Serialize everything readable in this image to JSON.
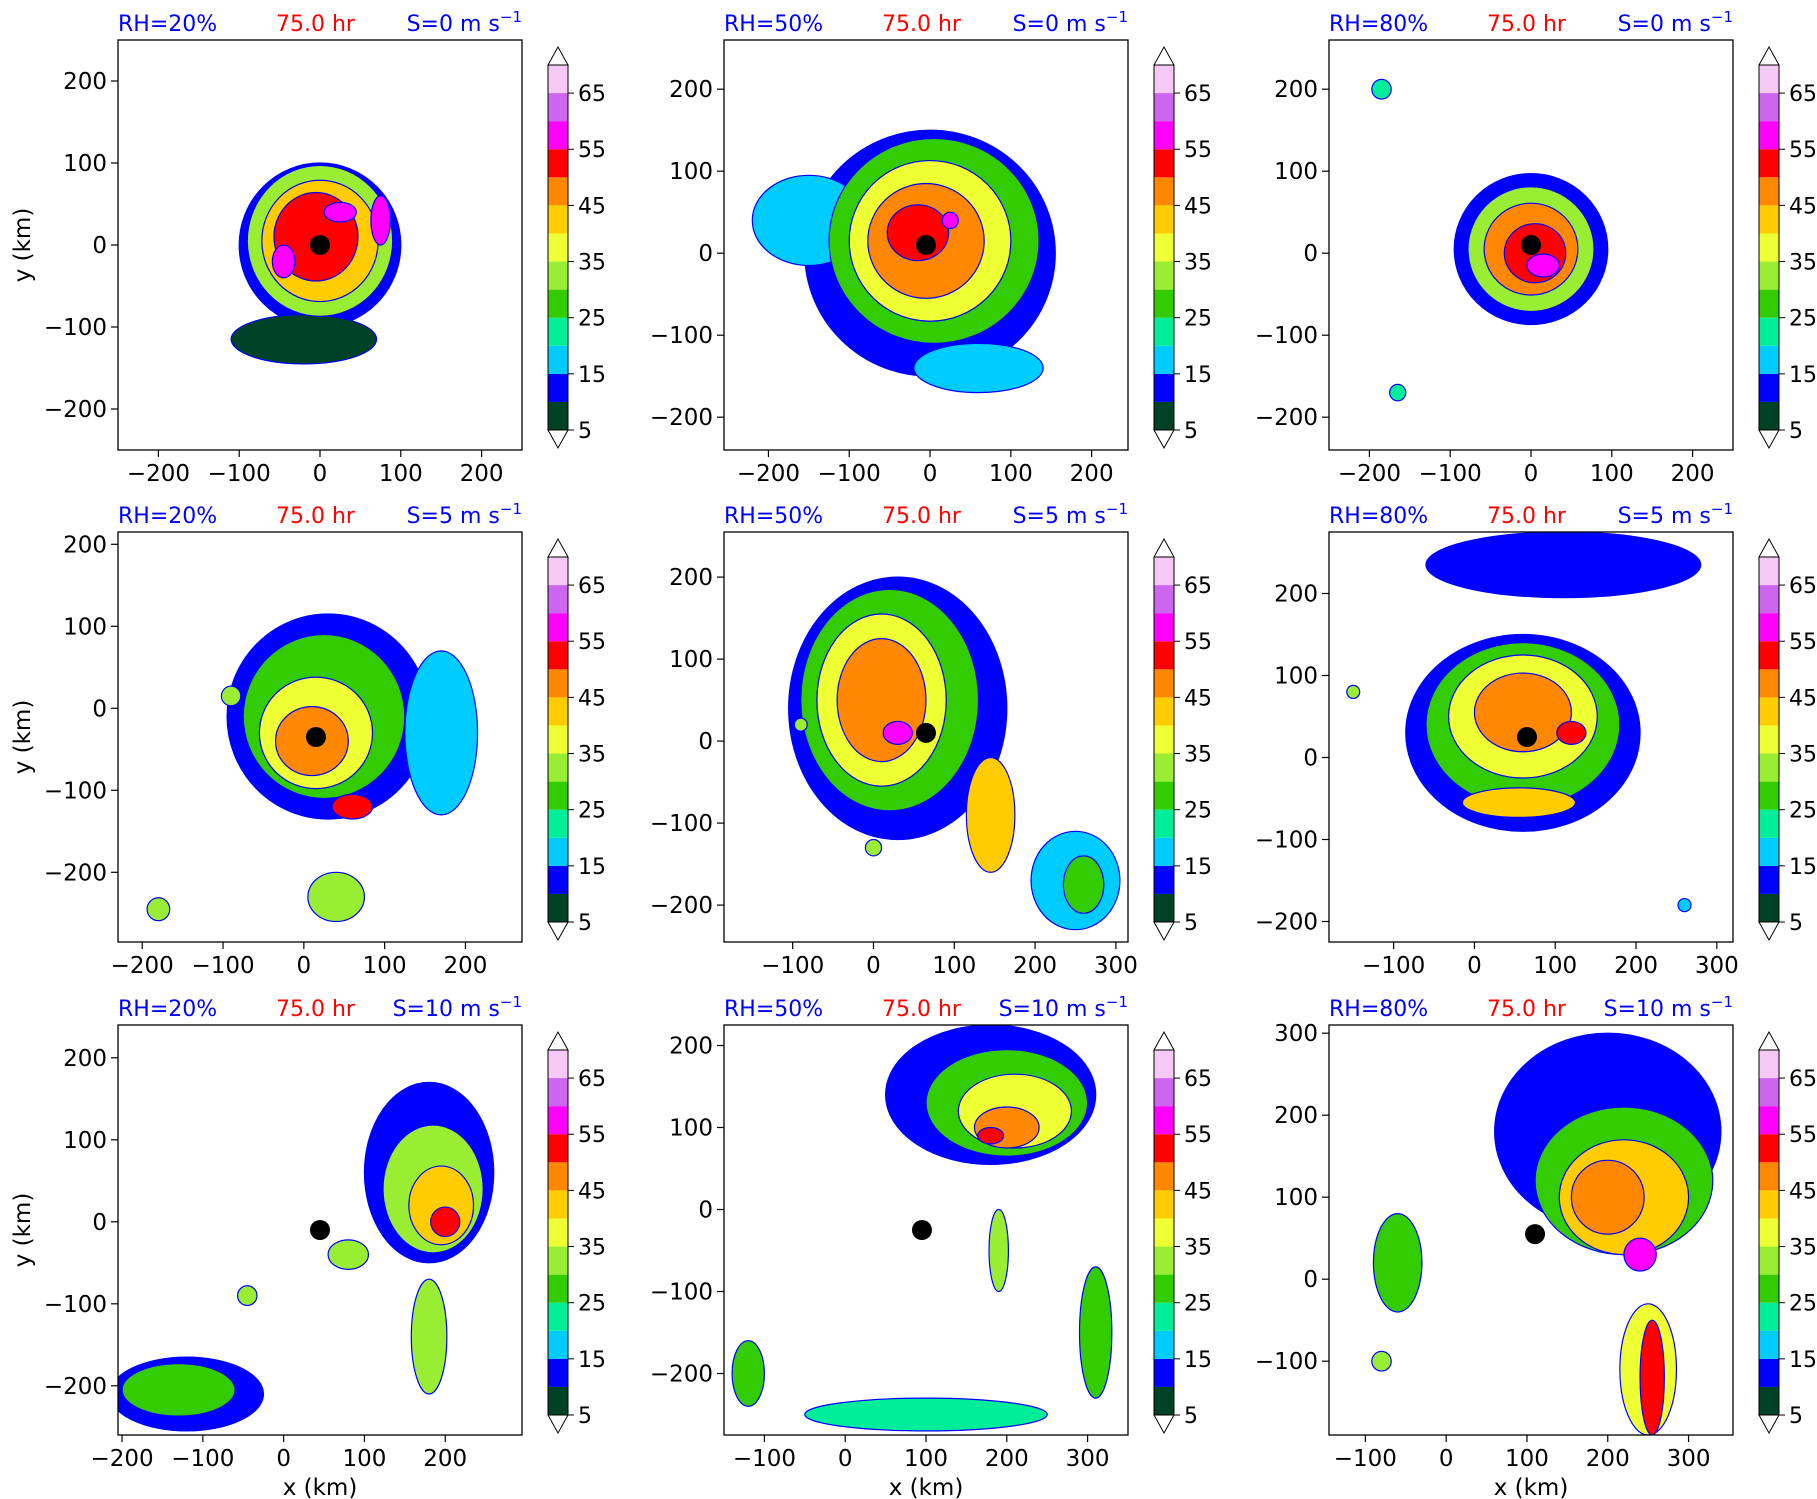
{
  "figure": {
    "xlabel": "x (km)",
    "ylabel": "y (km)",
    "time_label": "75.0 hr",
    "colors": {
      "rh_label": "#0000ff",
      "time_label": "#ff0000",
      "shear_label": "#0000ff",
      "eye_marker": "#000000"
    }
  },
  "colorbar": {
    "levels": [
      5,
      10,
      15,
      20,
      25,
      30,
      35,
      40,
      45,
      50,
      55,
      60,
      65,
      70
    ],
    "tick_labels": [
      "5",
      "15",
      "25",
      "35",
      "45",
      "55",
      "65"
    ],
    "tick_values": [
      5,
      15,
      25,
      35,
      45,
      55,
      65
    ],
    "colors": [
      "#004225",
      "#0000ff",
      "#00ccff",
      "#00ee99",
      "#33cc00",
      "#99ee33",
      "#eeff33",
      "#ffcc00",
      "#ff8800",
      "#ff0000",
      "#ff00ff",
      "#cc66ee",
      "#f5c8f5"
    ],
    "extend": "both",
    "under_color": "#ffffff",
    "over_color": "#ffffff"
  },
  "chart_data": [
    {
      "type": "heatmap",
      "row": 0,
      "col": 0,
      "rh_label": "RH=20%",
      "time_label": "75.0 hr",
      "shear_label": "S=0 m s",
      "xlim": [
        -250,
        250
      ],
      "ylim": [
        -250,
        250
      ],
      "xticks": [
        -200,
        -100,
        0,
        100,
        200
      ],
      "yticks": [
        -200,
        -100,
        0,
        100,
        200
      ],
      "eye": [
        0,
        0
      ],
      "blobs": [
        {
          "x": 0,
          "y": 0,
          "rx": 100,
          "ry": 100,
          "level": 10
        },
        {
          "x": -20,
          "y": -115,
          "rx": 90,
          "ry": 30,
          "level": 5
        },
        {
          "x": 0,
          "y": 5,
          "rx": 90,
          "ry": 92,
          "level": 30
        },
        {
          "x": 0,
          "y": 5,
          "rx": 72,
          "ry": 74,
          "level": 40
        },
        {
          "x": -5,
          "y": 10,
          "rx": 52,
          "ry": 54,
          "level": 50
        },
        {
          "x": 25,
          "y": 40,
          "rx": 20,
          "ry": 12,
          "level": 55
        },
        {
          "x": -45,
          "y": -20,
          "rx": 14,
          "ry": 20,
          "level": 55
        },
        {
          "x": 75,
          "y": 30,
          "rx": 12,
          "ry": 30,
          "level": 55
        }
      ]
    },
    {
      "type": "heatmap",
      "row": 0,
      "col": 1,
      "rh_label": "RH=50%",
      "time_label": "75.0 hr",
      "shear_label": "S=0 m s",
      "xlim": [
        -255,
        245
      ],
      "ylim": [
        -240,
        260
      ],
      "xticks": [
        -200,
        -100,
        0,
        100,
        200
      ],
      "yticks": [
        -200,
        -100,
        0,
        100,
        200
      ],
      "eye": [
        -5,
        10
      ],
      "blobs": [
        {
          "x": 0,
          "y": 0,
          "rx": 155,
          "ry": 150,
          "level": 10
        },
        {
          "x": -150,
          "y": 40,
          "rx": 70,
          "ry": 55,
          "level": 15
        },
        {
          "x": 60,
          "y": -140,
          "rx": 80,
          "ry": 30,
          "level": 15
        },
        {
          "x": 5,
          "y": 15,
          "rx": 130,
          "ry": 125,
          "level": 25
        },
        {
          "x": 0,
          "y": 15,
          "rx": 100,
          "ry": 98,
          "level": 35
        },
        {
          "x": -5,
          "y": 15,
          "rx": 72,
          "ry": 70,
          "level": 45
        },
        {
          "x": -15,
          "y": 25,
          "rx": 38,
          "ry": 34,
          "level": 50
        },
        {
          "x": 25,
          "y": 40,
          "rx": 10,
          "ry": 10,
          "level": 55
        }
      ]
    },
    {
      "type": "heatmap",
      "row": 0,
      "col": 2,
      "rh_label": "RH=80%",
      "time_label": "75.0 hr",
      "shear_label": "S=0 m s",
      "xlim": [
        -250,
        250
      ],
      "ylim": [
        -240,
        260
      ],
      "xticks": [
        -200,
        -100,
        0,
        100,
        200
      ],
      "yticks": [
        -200,
        -100,
        0,
        100,
        200
      ],
      "eye": [
        0,
        10
      ],
      "blobs": [
        {
          "x": 0,
          "y": 5,
          "rx": 95,
          "ry": 92,
          "level": 10
        },
        {
          "x": 0,
          "y": 5,
          "rx": 78,
          "ry": 76,
          "level": 30
        },
        {
          "x": 0,
          "y": 5,
          "rx": 58,
          "ry": 56,
          "level": 45
        },
        {
          "x": 5,
          "y": 0,
          "rx": 38,
          "ry": 36,
          "level": 50
        },
        {
          "x": 15,
          "y": -15,
          "rx": 20,
          "ry": 14,
          "level": 55
        },
        {
          "x": -185,
          "y": 200,
          "rx": 12,
          "ry": 12,
          "level": 20
        },
        {
          "x": -165,
          "y": -170,
          "rx": 10,
          "ry": 10,
          "level": 20
        }
      ]
    },
    {
      "type": "heatmap",
      "row": 1,
      "col": 0,
      "rh_label": "RH=20%",
      "time_label": "75.0 hr",
      "shear_label": "S=5 m s",
      "xlim": [
        -230,
        270
      ],
      "ylim": [
        -285,
        215
      ],
      "xticks": [
        -200,
        -100,
        0,
        100,
        200
      ],
      "yticks": [
        -200,
        -100,
        0,
        100,
        200
      ],
      "eye": [
        15,
        -35
      ],
      "blobs": [
        {
          "x": 30,
          "y": -10,
          "rx": 125,
          "ry": 125,
          "level": 10
        },
        {
          "x": 170,
          "y": -30,
          "rx": 45,
          "ry": 100,
          "level": 15
        },
        {
          "x": 25,
          "y": -10,
          "rx": 100,
          "ry": 100,
          "level": 25
        },
        {
          "x": 15,
          "y": -30,
          "rx": 70,
          "ry": 68,
          "level": 35
        },
        {
          "x": 10,
          "y": -40,
          "rx": 45,
          "ry": 42,
          "level": 45
        },
        {
          "x": 60,
          "y": -120,
          "rx": 25,
          "ry": 15,
          "level": 50
        },
        {
          "x": 40,
          "y": -230,
          "rx": 35,
          "ry": 30,
          "level": 30
        },
        {
          "x": -90,
          "y": 15,
          "rx": 12,
          "ry": 12,
          "level": 30
        },
        {
          "x": -180,
          "y": -245,
          "rx": 14,
          "ry": 14,
          "level": 30
        }
      ]
    },
    {
      "type": "heatmap",
      "row": 1,
      "col": 1,
      "rh_label": "RH=50%",
      "time_label": "75.0 hr",
      "shear_label": "S=5 m s",
      "xlim": [
        -185,
        315
      ],
      "ylim": [
        -245,
        255
      ],
      "xticks": [
        -100,
        0,
        100,
        200,
        300
      ],
      "yticks": [
        -200,
        -100,
        0,
        100,
        200
      ],
      "eye": [
        65,
        10
      ],
      "blobs": [
        {
          "x": 30,
          "y": 40,
          "rx": 135,
          "ry": 160,
          "level": 10
        },
        {
          "x": 20,
          "y": 50,
          "rx": 110,
          "ry": 135,
          "level": 25
        },
        {
          "x": 10,
          "y": 50,
          "rx": 80,
          "ry": 105,
          "level": 35
        },
        {
          "x": 10,
          "y": 50,
          "rx": 55,
          "ry": 75,
          "level": 45
        },
        {
          "x": 30,
          "y": 10,
          "rx": 18,
          "ry": 14,
          "level": 55
        },
        {
          "x": 145,
          "y": -90,
          "rx": 30,
          "ry": 70,
          "level": 40
        },
        {
          "x": 250,
          "y": -170,
          "rx": 55,
          "ry": 60,
          "level": 15
        },
        {
          "x": 260,
          "y": -175,
          "rx": 25,
          "ry": 35,
          "level": 25
        },
        {
          "x": -90,
          "y": 20,
          "rx": 8,
          "ry": 8,
          "level": 30
        },
        {
          "x": 0,
          "y": -130,
          "rx": 10,
          "ry": 10,
          "level": 30
        }
      ]
    },
    {
      "type": "heatmap",
      "row": 1,
      "col": 2,
      "rh_label": "RH=80%",
      "time_label": "75.0 hr",
      "shear_label": "S=5 m s",
      "xlim": [
        -180,
        320
      ],
      "ylim": [
        -225,
        275
      ],
      "xticks": [
        -100,
        0,
        100,
        200,
        300
      ],
      "yticks": [
        -200,
        -100,
        0,
        100,
        200
      ],
      "eye": [
        65,
        25
      ],
      "blobs": [
        {
          "x": 60,
          "y": 30,
          "rx": 145,
          "ry": 120,
          "level": 10
        },
        {
          "x": 110,
          "y": 235,
          "rx": 170,
          "ry": 40,
          "level": 10
        },
        {
          "x": 60,
          "y": 40,
          "rx": 120,
          "ry": 100,
          "level": 25
        },
        {
          "x": 60,
          "y": 50,
          "rx": 92,
          "ry": 75,
          "level": 35
        },
        {
          "x": 60,
          "y": 55,
          "rx": 60,
          "ry": 48,
          "level": 45
        },
        {
          "x": 55,
          "y": -55,
          "rx": 70,
          "ry": 18,
          "level": 40
        },
        {
          "x": 120,
          "y": 30,
          "rx": 18,
          "ry": 14,
          "level": 50
        },
        {
          "x": -150,
          "y": 80,
          "rx": 8,
          "ry": 8,
          "level": 30
        },
        {
          "x": 260,
          "y": -180,
          "rx": 8,
          "ry": 8,
          "level": 15
        }
      ]
    },
    {
      "type": "heatmap",
      "row": 2,
      "col": 0,
      "rh_label": "RH=20%",
      "time_label": "75.0 hr",
      "shear_label": "S=10 m s",
      "xlim": [
        -205,
        295
      ],
      "ylim": [
        -260,
        240
      ],
      "xticks": [
        -200,
        -100,
        0,
        100,
        200
      ],
      "yticks": [
        -200,
        -100,
        0,
        100,
        200
      ],
      "eye": [
        45,
        -10
      ],
      "blobs": [
        {
          "x": 180,
          "y": 60,
          "rx": 80,
          "ry": 110,
          "level": 10
        },
        {
          "x": 185,
          "y": 40,
          "rx": 62,
          "ry": 78,
          "level": 30
        },
        {
          "x": 195,
          "y": 20,
          "rx": 40,
          "ry": 48,
          "level": 40
        },
        {
          "x": 200,
          "y": 0,
          "rx": 18,
          "ry": 18,
          "level": 50
        },
        {
          "x": 180,
          "y": -140,
          "rx": 22,
          "ry": 70,
          "level": 30
        },
        {
          "x": -120,
          "y": -210,
          "rx": 95,
          "ry": 45,
          "level": 10
        },
        {
          "x": -130,
          "y": -205,
          "rx": 70,
          "ry": 32,
          "level": 25
        },
        {
          "x": 80,
          "y": -40,
          "rx": 25,
          "ry": 18,
          "level": 30
        },
        {
          "x": -45,
          "y": -90,
          "rx": 12,
          "ry": 12,
          "level": 30
        }
      ]
    },
    {
      "type": "heatmap",
      "row": 2,
      "col": 1,
      "rh_label": "RH=50%",
      "time_label": "75.0 hr",
      "shear_label": "S=10 m s",
      "xlim": [
        -150,
        350
      ],
      "ylim": [
        -275,
        225
      ],
      "xticks": [
        -100,
        0,
        100,
        200,
        300
      ],
      "yticks": [
        -200,
        -100,
        0,
        100,
        200
      ],
      "eye": [
        95,
        -25
      ],
      "blobs": [
        {
          "x": 180,
          "y": 140,
          "rx": 130,
          "ry": 85,
          "level": 10
        },
        {
          "x": 200,
          "y": 130,
          "rx": 100,
          "ry": 65,
          "level": 25
        },
        {
          "x": 210,
          "y": 120,
          "rx": 70,
          "ry": 45,
          "level": 35
        },
        {
          "x": 200,
          "y": 100,
          "rx": 40,
          "ry": 25,
          "level": 45
        },
        {
          "x": 180,
          "y": 90,
          "rx": 16,
          "ry": 10,
          "level": 50
        },
        {
          "x": 310,
          "y": -150,
          "rx": 20,
          "ry": 80,
          "level": 25
        },
        {
          "x": -120,
          "y": -200,
          "rx": 20,
          "ry": 40,
          "level": 25
        },
        {
          "x": 100,
          "y": -250,
          "rx": 150,
          "ry": 20,
          "level": 20
        },
        {
          "x": 190,
          "y": -50,
          "rx": 12,
          "ry": 50,
          "level": 30
        }
      ]
    },
    {
      "type": "heatmap",
      "row": 2,
      "col": 2,
      "rh_label": "RH=80%",
      "time_label": "75.0 hr",
      "shear_label": "S=10 m s",
      "xlim": [
        -145,
        355
      ],
      "ylim": [
        -190,
        310
      ],
      "xticks": [
        -100,
        0,
        100,
        200,
        300
      ],
      "yticks": [
        -100,
        0,
        100,
        200,
        300
      ],
      "eye": [
        110,
        55
      ],
      "blobs": [
        {
          "x": 200,
          "y": 180,
          "rx": 140,
          "ry": 120,
          "level": 10
        },
        {
          "x": 220,
          "y": 120,
          "rx": 110,
          "ry": 90,
          "level": 25
        },
        {
          "x": 220,
          "y": 100,
          "rx": 80,
          "ry": 70,
          "level": 40
        },
        {
          "x": 200,
          "y": 100,
          "rx": 45,
          "ry": 45,
          "level": 45
        },
        {
          "x": 240,
          "y": 30,
          "rx": 20,
          "ry": 20,
          "level": 55
        },
        {
          "x": 250,
          "y": -110,
          "rx": 35,
          "ry": 80,
          "level": 35
        },
        {
          "x": 255,
          "y": -120,
          "rx": 15,
          "ry": 70,
          "level": 50
        },
        {
          "x": -60,
          "y": 20,
          "rx": 30,
          "ry": 60,
          "level": 25
        },
        {
          "x": -80,
          "y": -100,
          "rx": 12,
          "ry": 12,
          "level": 30
        }
      ]
    }
  ]
}
